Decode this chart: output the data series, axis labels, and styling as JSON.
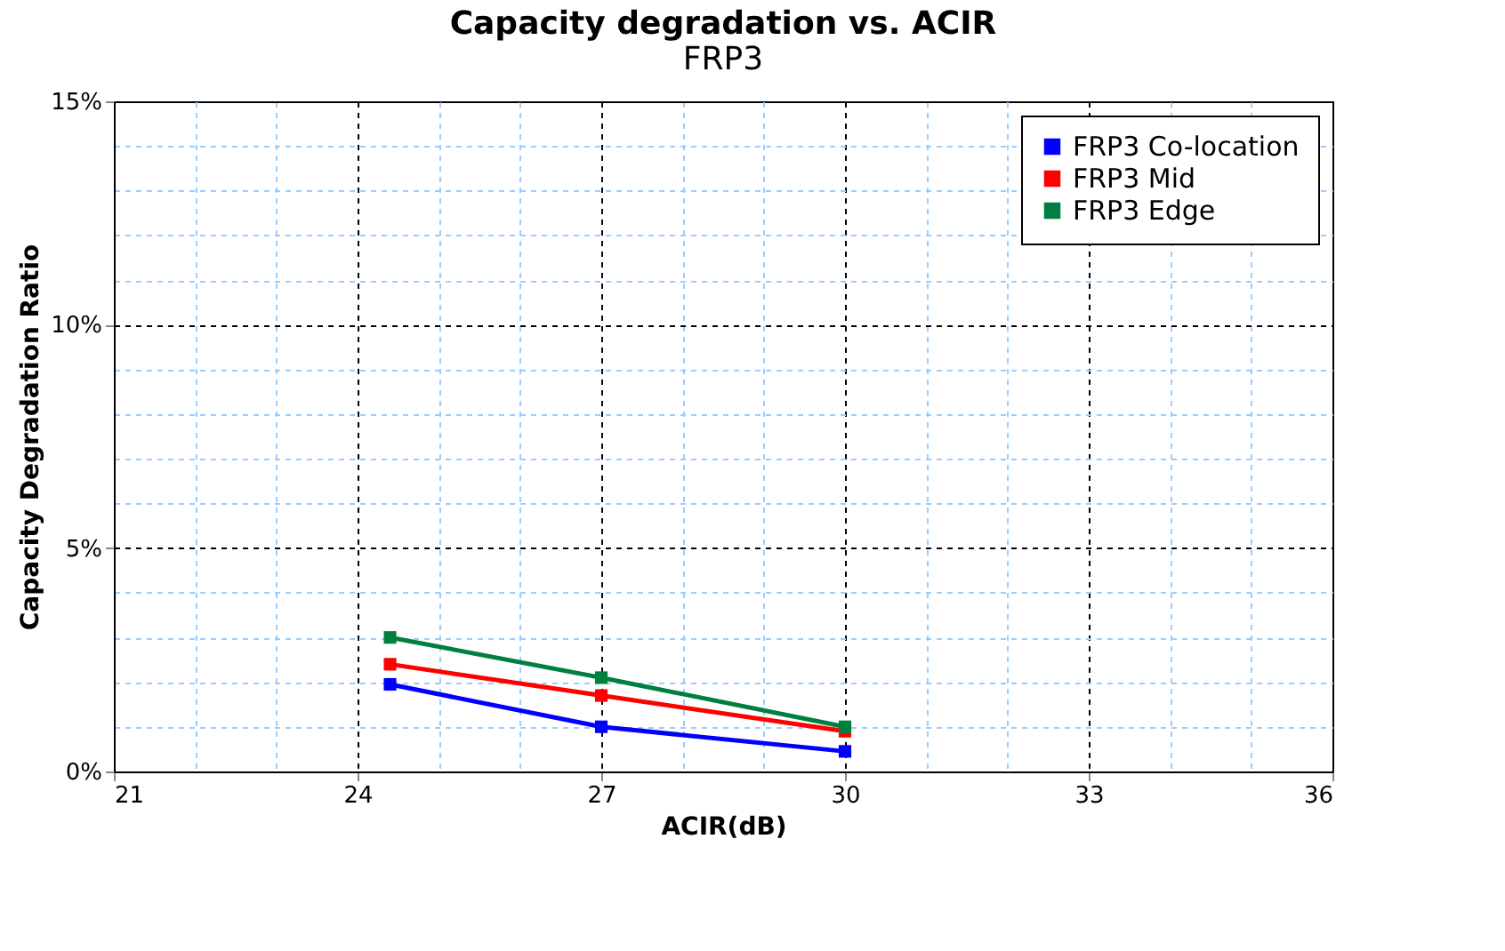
{
  "chart_data": {
    "type": "line",
    "title": "Capacity degradation vs. ACIR",
    "subtitle": "FRP3",
    "xlabel": "ACIR(dB)",
    "ylabel": "Capacity Degradation Ratio",
    "x": [
      24.4,
      27,
      30
    ],
    "series": [
      {
        "name": "FRP3 Co-location",
        "color": "#0000ff",
        "values": [
          1.95,
          1.0,
          0.45
        ]
      },
      {
        "name": "FRP3 Mid",
        "color": "#ff0000",
        "values": [
          2.4,
          1.7,
          0.9
        ]
      },
      {
        "name": "FRP3 Edge",
        "color": "#008040",
        "values": [
          3.0,
          2.1,
          1.0
        ]
      }
    ],
    "xlim": [
      21,
      36
    ],
    "xticks": [
      21,
      {
        "value": 22,
        "label": null
      },
      {
        "value": 23,
        "label": null
      },
      24,
      {
        "value": 25,
        "label": null
      },
      {
        "value": 26,
        "label": null
      },
      27,
      {
        "value": 28,
        "label": null
      },
      {
        "value": 29,
        "label": null
      },
      30,
      {
        "value": 31,
        "label": null
      },
      {
        "value": 32,
        "label": null
      },
      33,
      {
        "value": 34,
        "label": null
      },
      {
        "value": 35,
        "label": null
      },
      36
    ],
    "ylim": [
      0,
      15
    ],
    "yticks": [
      {
        "value": 0,
        "label": "0%"
      },
      {
        "value": 1,
        "label": null
      },
      {
        "value": 2,
        "label": null
      },
      {
        "value": 3,
        "label": null
      },
      {
        "value": 4,
        "label": null
      },
      {
        "value": 5,
        "label": "5%"
      },
      {
        "value": 6,
        "label": null
      },
      {
        "value": 7,
        "label": null
      },
      {
        "value": 8,
        "label": null
      },
      {
        "value": 9,
        "label": null
      },
      {
        "value": 10,
        "label": "10%"
      },
      {
        "value": 11,
        "label": null
      },
      {
        "value": 12,
        "label": null
      },
      {
        "value": 13,
        "label": null
      },
      {
        "value": 14,
        "label": null
      },
      {
        "value": 15,
        "label": "15%"
      }
    ],
    "grid": true,
    "legend": "top right",
    "marker": "square",
    "line_style": "solid"
  }
}
